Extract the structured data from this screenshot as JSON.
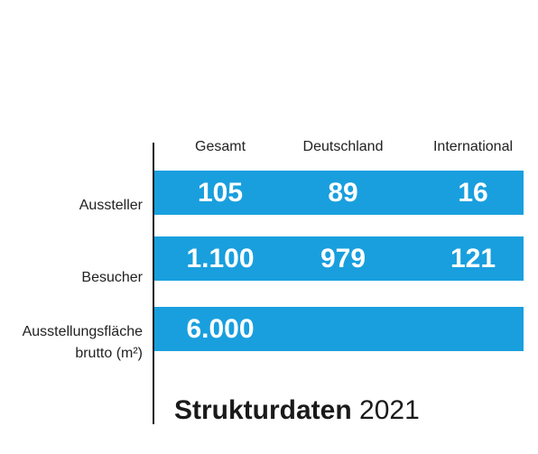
{
  "chart_data": {
    "type": "table",
    "title": "Strukturdaten",
    "title_year": "2021",
    "columns": [
      "Gesamt",
      "Deutschland",
      "International"
    ],
    "rows": [
      {
        "label": [
          "Aussteller"
        ],
        "values": [
          "105",
          "89",
          "16"
        ]
      },
      {
        "label": [
          "Besucher"
        ],
        "values": [
          "1.100",
          "979",
          "121"
        ]
      },
      {
        "label": [
          "Ausstellungsfläche",
          "brutto (m²)"
        ],
        "values": [
          "6.000",
          "",
          ""
        ]
      }
    ],
    "band_color": "#199fde"
  }
}
